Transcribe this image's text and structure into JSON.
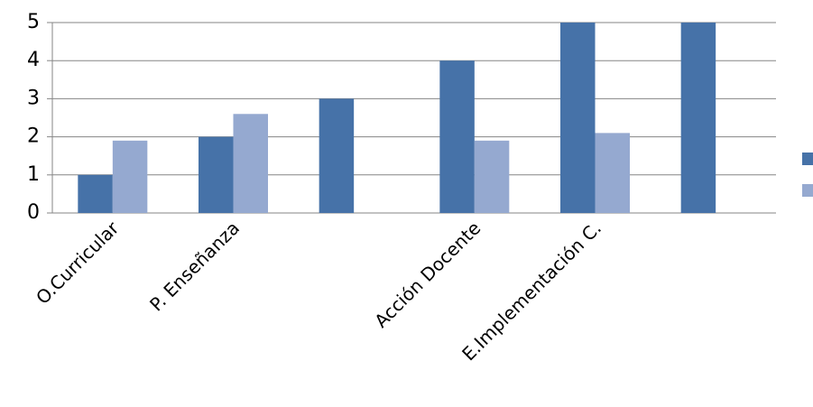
{
  "chart_data": {
    "type": "bar",
    "categories": [
      "O.Curricular",
      "P. Enseñanza",
      null,
      "Acción Docente",
      "E.Implementación C.",
      null
    ],
    "series": [
      {
        "color": "#4672a8",
        "values": [
          1,
          2,
          3,
          4,
          5,
          5
        ]
      },
      {
        "color": "#95a9d0",
        "values": [
          1.9,
          2.6,
          null,
          1.9,
          2.1,
          null
        ]
      }
    ],
    "ylim": [
      0,
      5
    ],
    "yticks": [
      0,
      1,
      2,
      3,
      4,
      5
    ],
    "grid": true,
    "legend": "right"
  }
}
